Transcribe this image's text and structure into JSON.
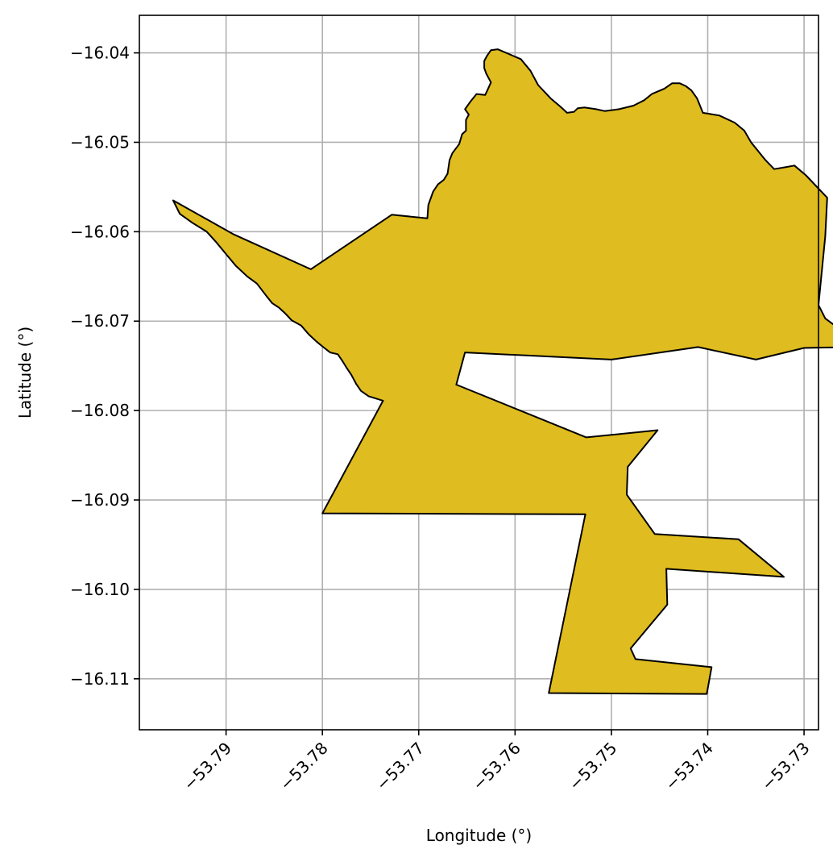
{
  "chart_data": {
    "type": "map",
    "xlabel": "Longitude (°)",
    "ylabel": "Latitude (°)",
    "xlim": [
      -53.799,
      -53.7285
    ],
    "ylim": [
      -16.1157,
      -16.0358
    ],
    "grid": true,
    "fill_color": "#DFBC1F",
    "edge_color": "#000000",
    "x_ticks": [
      {
        "value": -53.79,
        "label": "−53.79"
      },
      {
        "value": -53.78,
        "label": "−53.78"
      },
      {
        "value": -53.77,
        "label": "−53.77"
      },
      {
        "value": -53.76,
        "label": "−53.76"
      },
      {
        "value": -53.75,
        "label": "−53.75"
      },
      {
        "value": -53.74,
        "label": "−53.74"
      },
      {
        "value": -53.73,
        "label": "−53.73"
      }
    ],
    "y_ticks": [
      {
        "value": -16.04,
        "label": "−16.04"
      },
      {
        "value": -16.05,
        "label": "−16.05"
      },
      {
        "value": -16.06,
        "label": "−16.06"
      },
      {
        "value": -16.07,
        "label": "−16.07"
      },
      {
        "value": -16.08,
        "label": "−16.08"
      },
      {
        "value": -16.09,
        "label": "−16.09"
      },
      {
        "value": -16.1,
        "label": "−16.10"
      },
      {
        "value": -16.11,
        "label": "−16.11"
      }
    ],
    "polygon": [
      [
        -53.7955,
        -16.0565
      ],
      [
        -53.7892,
        -16.0603
      ],
      [
        -53.7812,
        -16.0642
      ],
      [
        -53.7728,
        -16.0581
      ],
      [
        -53.7691,
        -16.0585
      ],
      [
        -53.769,
        -16.057
      ],
      [
        -53.7685,
        -16.0555
      ],
      [
        -53.768,
        -16.0547
      ],
      [
        -53.7674,
        -16.0542
      ],
      [
        -53.767,
        -16.0535
      ],
      [
        -53.7668,
        -16.052
      ],
      [
        -53.7665,
        -16.0512
      ],
      [
        -53.7658,
        -16.0502
      ],
      [
        -53.7655,
        -16.0491
      ],
      [
        -53.7651,
        -16.0487
      ],
      [
        -53.7651,
        -16.0475
      ],
      [
        -53.7648,
        -16.0469
      ],
      [
        -53.7652,
        -16.0463
      ],
      [
        -53.7646,
        -16.0454
      ],
      [
        -53.764,
        -16.0446
      ],
      [
        -53.7631,
        -16.0447
      ],
      [
        -53.7628,
        -16.044
      ],
      [
        -53.7625,
        -16.0433
      ],
      [
        -53.763,
        -16.0423
      ],
      [
        -53.7632,
        -16.0417
      ],
      [
        -53.7632,
        -16.0409
      ],
      [
        -53.7629,
        -16.0403
      ],
      [
        -53.7625,
        -16.0397
      ],
      [
        -53.7618,
        -16.0396
      ],
      [
        -53.7594,
        -16.0407
      ],
      [
        -53.7584,
        -16.042
      ],
      [
        -53.7576,
        -16.0436
      ],
      [
        -53.7563,
        -16.0451
      ],
      [
        -53.7553,
        -16.046
      ],
      [
        -53.7546,
        -16.0467
      ],
      [
        -53.7539,
        -16.0466
      ],
      [
        -53.7535,
        -16.0462
      ],
      [
        -53.7528,
        -16.0461
      ],
      [
        -53.7516,
        -16.0463
      ],
      [
        -53.7507,
        -16.0465
      ],
      [
        -53.7492,
        -16.0463
      ],
      [
        -53.7477,
        -16.0459
      ],
      [
        -53.7466,
        -16.0453
      ],
      [
        -53.7458,
        -16.0446
      ],
      [
        -53.7445,
        -16.044
      ],
      [
        -53.7437,
        -16.0434
      ],
      [
        -53.7429,
        -16.0434
      ],
      [
        -53.7423,
        -16.0437
      ],
      [
        -53.7417,
        -16.0442
      ],
      [
        -53.7411,
        -16.0451
      ],
      [
        -53.7405,
        -16.0467
      ],
      [
        -53.7388,
        -16.047
      ],
      [
        -53.7372,
        -16.0478
      ],
      [
        -53.7362,
        -16.0487
      ],
      [
        -53.7355,
        -16.05
      ],
      [
        -53.734,
        -16.052
      ],
      [
        -53.7331,
        -16.053
      ],
      [
        -53.732,
        -16.0528
      ],
      [
        -53.731,
        -16.0526
      ],
      [
        -53.7298,
        -16.0537
      ],
      [
        -53.7276,
        -16.0562
      ],
      [
        -53.7278,
        -16.0605
      ],
      [
        -53.7285,
        -16.0682
      ],
      [
        -53.7278,
        -16.0697
      ],
      [
        -53.7258,
        -16.0713
      ],
      [
        -53.724,
        -16.0728
      ],
      [
        -53.723,
        -16.0736
      ],
      [
        -53.722,
        -16.0744
      ],
      [
        -53.72,
        -16.0728
      ],
      [
        -53.73,
        -16.073
      ],
      [
        -53.735,
        -16.0743
      ],
      [
        -53.741,
        -16.0729
      ],
      [
        -53.75,
        -16.0743
      ],
      [
        -53.7652,
        -16.0735
      ],
      [
        -53.7661,
        -16.0771
      ],
      [
        -53.7526,
        -16.083
      ],
      [
        -53.7452,
        -16.0822
      ],
      [
        -53.7483,
        -16.0863
      ],
      [
        -53.7484,
        -16.0894
      ],
      [
        -53.7455,
        -16.0938
      ],
      [
        -53.7368,
        -16.0944
      ],
      [
        -53.7321,
        -16.0986
      ],
      [
        -53.7443,
        -16.0977
      ],
      [
        -53.7442,
        -16.1017
      ],
      [
        -53.748,
        -16.1066
      ],
      [
        -53.7475,
        -16.1078
      ],
      [
        -53.7396,
        -16.1087
      ],
      [
        -53.7401,
        -16.1117
      ],
      [
        -53.7565,
        -16.1116
      ],
      [
        -53.7527,
        -16.0916
      ],
      [
        -53.78,
        -16.0915
      ],
      [
        -53.7737,
        -16.0789
      ],
      [
        -53.7752,
        -16.0784
      ],
      [
        -53.776,
        -16.0778
      ],
      [
        -53.7765,
        -16.077
      ],
      [
        -53.777,
        -16.076
      ],
      [
        -53.7775,
        -16.0752
      ],
      [
        -53.7779,
        -16.0745
      ],
      [
        -53.7784,
        -16.0737
      ],
      [
        -53.7792,
        -16.0735
      ],
      [
        -53.7798,
        -16.073
      ],
      [
        -53.7806,
        -16.0723
      ],
      [
        -53.7814,
        -16.0715
      ],
      [
        -53.7822,
        -16.0705
      ],
      [
        -53.7832,
        -16.0699
      ],
      [
        -53.7838,
        -16.0692
      ],
      [
        -53.7845,
        -16.0685
      ],
      [
        -53.7852,
        -16.068
      ],
      [
        -53.7858,
        -16.0672
      ],
      [
        -53.7868,
        -16.0658
      ],
      [
        -53.7878,
        -16.065
      ],
      [
        -53.789,
        -16.0638
      ],
      [
        -53.79,
        -16.0625
      ],
      [
        -53.791,
        -16.0612
      ],
      [
        -53.792,
        -16.06
      ],
      [
        -53.7935,
        -16.059
      ],
      [
        -53.7948,
        -16.058
      ],
      [
        -53.7955,
        -16.0565
      ]
    ]
  }
}
